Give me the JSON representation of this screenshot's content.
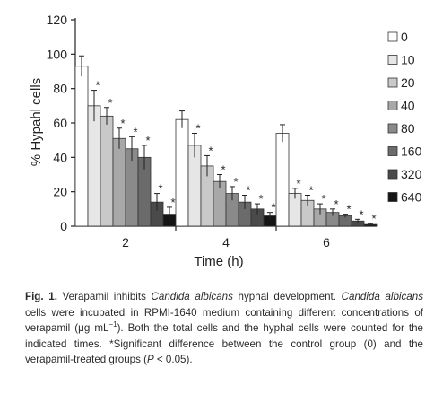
{
  "chart_data": {
    "type": "bar",
    "xlabel": "Time (h)",
    "ylabel": "% Hypahl cells",
    "ylim": [
      0,
      120
    ],
    "yticks": [
      0,
      20,
      40,
      60,
      80,
      100,
      120
    ],
    "categories": [
      "2",
      "4",
      "6"
    ],
    "legend_position": "right",
    "series": [
      {
        "name": "0",
        "color": "#ffffff",
        "values": [
          93,
          62,
          54
        ],
        "errors": [
          6,
          5,
          5
        ],
        "significant": [
          false,
          false,
          false
        ]
      },
      {
        "name": "10",
        "color": "#e6e6e6",
        "values": [
          70,
          47,
          19
        ],
        "errors": [
          9,
          7,
          3
        ],
        "significant": [
          true,
          true,
          true
        ]
      },
      {
        "name": "20",
        "color": "#c9c9c9",
        "values": [
          64,
          35,
          15
        ],
        "errors": [
          5,
          6,
          3
        ],
        "significant": [
          true,
          true,
          true
        ]
      },
      {
        "name": "40",
        "color": "#a8a8a8",
        "values": [
          51,
          26,
          10
        ],
        "errors": [
          6,
          4,
          3
        ],
        "significant": [
          true,
          true,
          true
        ]
      },
      {
        "name": "80",
        "color": "#8a8a8a",
        "values": [
          45,
          19,
          8
        ],
        "errors": [
          7,
          4,
          2
        ],
        "significant": [
          true,
          true,
          true
        ]
      },
      {
        "name": "160",
        "color": "#6b6b6b",
        "values": [
          40,
          14,
          6
        ],
        "errors": [
          7,
          4,
          1
        ],
        "significant": [
          true,
          true,
          true
        ]
      },
      {
        "name": "320",
        "color": "#4a4a4a",
        "values": [
          14,
          10,
          3
        ],
        "errors": [
          5,
          3,
          1
        ],
        "significant": [
          true,
          true,
          true
        ]
      },
      {
        "name": "640",
        "color": "#151515",
        "values": [
          7,
          6,
          1
        ],
        "errors": [
          4,
          2,
          0.5
        ],
        "significant": [
          true,
          true,
          true
        ]
      }
    ],
    "significance_marker": "*"
  },
  "caption": {
    "label": "Fig. 1.",
    "t1": " Verapamil inhibits ",
    "t2": "Candida albicans",
    "t3": " hyphal development. ",
    "t4": "Candida albicans",
    "t5": " cells were incubated in RPMI-1640 medium containing different concentrations of verapamil (μg mL",
    "t6": "−1",
    "t7": "). Both the total cells and the hyphal cells were counted for the indicated times. *Significant difference between the control group (0) and the verapamil-treated groups (",
    "t8": "P",
    "t9": " < 0.05)."
  }
}
